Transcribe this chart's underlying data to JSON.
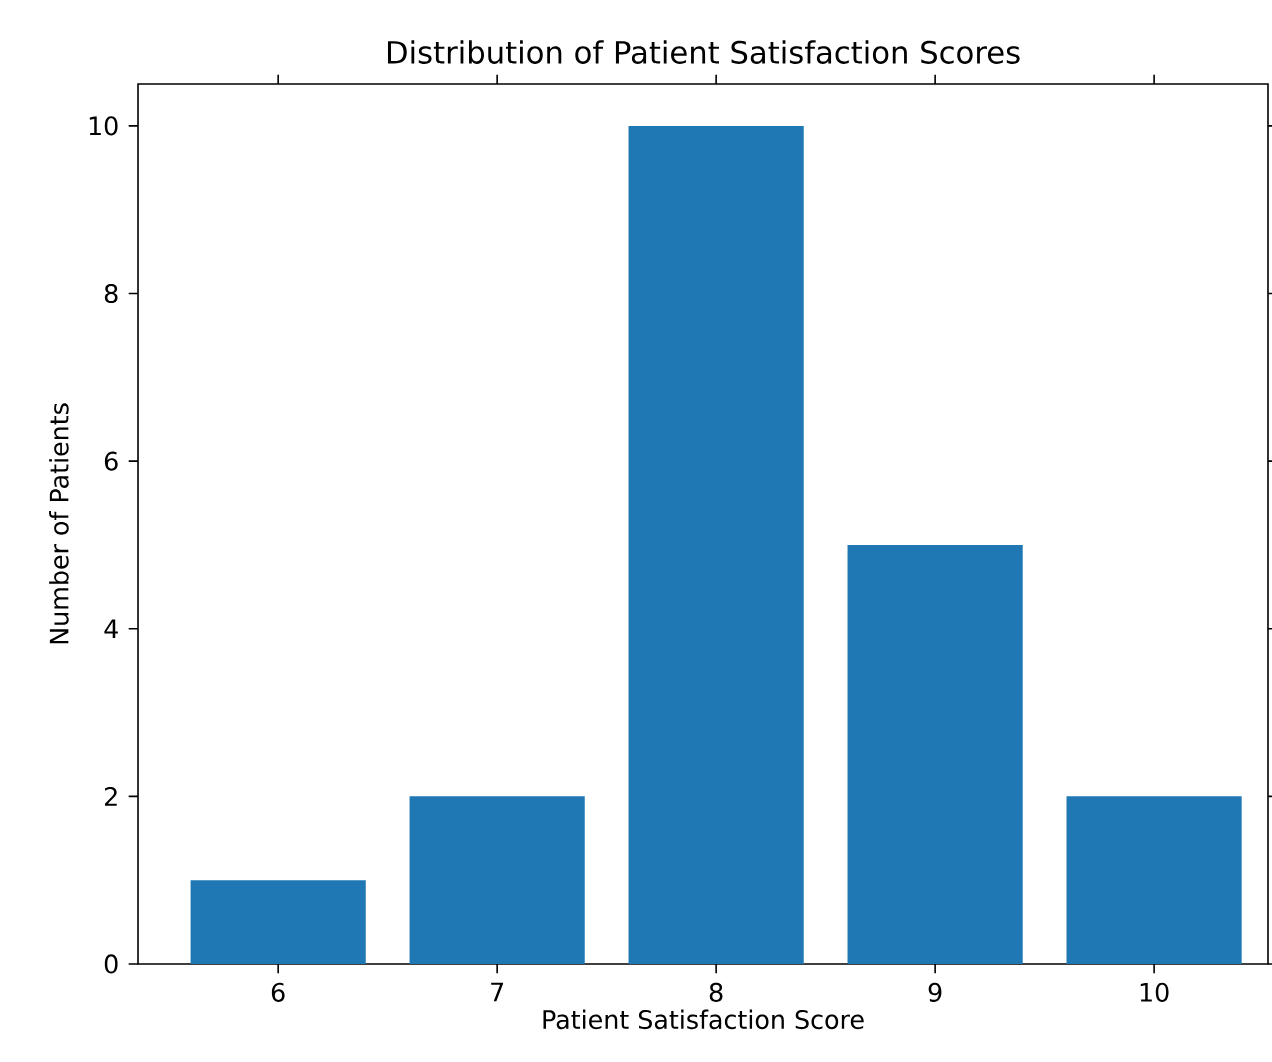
{
  "chart_data": {
    "type": "bar",
    "title": "Distribution of Patient Satisfaction Scores",
    "xlabel": "Patient Satisfaction Score",
    "ylabel": "Number of Patients",
    "categories": [
      "6",
      "7",
      "8",
      "9",
      "10"
    ],
    "values": [
      1,
      2,
      10,
      5,
      2
    ],
    "color": "#1f77b4",
    "ylim": [
      0,
      10.5
    ],
    "yticks": [
      0,
      2,
      4,
      6,
      8,
      10
    ]
  }
}
